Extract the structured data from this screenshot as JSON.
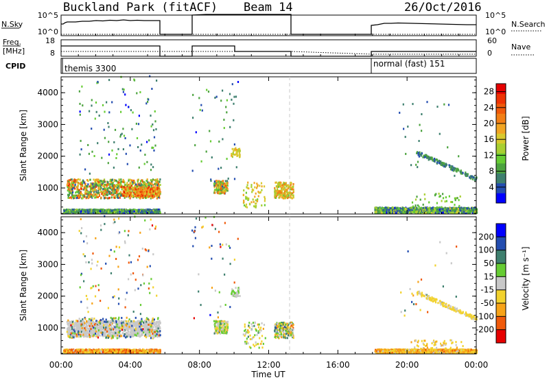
{
  "header": {
    "station": "Buckland Park (fitACF)",
    "beam": "Beam 14",
    "date": "26/Oct/2016"
  },
  "panels": {
    "nsky_label": "N.Sky",
    "nsky_ticks": [
      "10^5",
      "10^0"
    ],
    "nsearch_label": "N.Search",
    "nsearch_ticks": [
      "10^5",
      "10^0"
    ],
    "freq_label_1": "Freq.",
    "freq_label_2": "[MHz]",
    "freq_ticks": [
      "18",
      "8"
    ],
    "nave_label": "Nave",
    "nave_ticks": [
      "60",
      "0"
    ],
    "cpid_label": "CPID",
    "cpid_entries": [
      {
        "text": "themis 3300",
        "start_hour": 0
      },
      {
        "text": "normal (fast) 151",
        "start_hour": 18.1
      }
    ]
  },
  "xaxis": {
    "label": "Time UT",
    "ticks": [
      "00:00",
      "04:00",
      "08:00",
      "12:00",
      "16:00",
      "20:00",
      "00:00"
    ],
    "range_hours": [
      0,
      24
    ]
  },
  "colors": {
    "power": [
      "#0000ff",
      "#234db0",
      "#3e7f6e",
      "#4ca33f",
      "#66cc33",
      "#a8cf32",
      "#d9c92e",
      "#f1a523",
      "#f27f16",
      "#f05a0b",
      "#ee3304",
      "#e60000"
    ],
    "velocity": [
      "#e60000",
      "#f05a0b",
      "#f7a318",
      "#f2d22e",
      "#c8c8c8",
      "#66cc33",
      "#3e7f6e",
      "#234db0",
      "#0000ff"
    ]
  },
  "chart_data": [
    {
      "type": "scatter",
      "title": "",
      "xlabel": "Time UT",
      "ylabel": "Slant Range [km]",
      "ylim": [
        180,
        4500
      ],
      "y_ticks": [
        "1000",
        "2000",
        "3000",
        "4000"
      ],
      "colorbar": {
        "label": "Power [dB]",
        "ticks": [
          "4",
          "8",
          "12",
          "16",
          "20",
          "24",
          "28"
        ],
        "range": [
          0,
          30
        ]
      },
      "scatter_groups": [
        {
          "t0": 0.1,
          "t1": 5.7,
          "r0": 180,
          "r1": 300,
          "n": 900,
          "v0": 2,
          "v1": 14
        },
        {
          "t0": 0.3,
          "t1": 5.7,
          "r0": 650,
          "r1": 1250,
          "n": 900,
          "v0": 4,
          "v1": 26
        },
        {
          "t0": 3.5,
          "t1": 5.7,
          "r0": 700,
          "r1": 1000,
          "n": 300,
          "v0": 14,
          "v1": 28
        },
        {
          "t0": 1.0,
          "t1": 5.5,
          "r0": 1400,
          "r1": 4500,
          "n": 110,
          "v0": 2,
          "v1": 12
        },
        {
          "t0": 8.8,
          "t1": 9.6,
          "r0": 800,
          "r1": 1200,
          "n": 160,
          "v0": 4,
          "v1": 24
        },
        {
          "t0": 7.5,
          "t1": 10.2,
          "r0": 1200,
          "r1": 4500,
          "n": 45,
          "v0": 2,
          "v1": 12
        },
        {
          "t0": 9.8,
          "t1": 10.3,
          "r0": 1950,
          "r1": 2250,
          "n": 40,
          "v0": 14,
          "v1": 18
        },
        {
          "t0": 10.5,
          "t1": 11.8,
          "r0": 350,
          "r1": 1150,
          "n": 70,
          "v0": 12,
          "v1": 20
        },
        {
          "t0": 12.3,
          "t1": 13.4,
          "r0": 650,
          "r1": 1150,
          "n": 200,
          "v0": 12,
          "v1": 22
        },
        {
          "t0": 18.1,
          "t1": 24.0,
          "r0": 180,
          "r1": 360,
          "n": 1100,
          "v0": 2,
          "v1": 16
        },
        {
          "t0": 20.2,
          "t1": 23.2,
          "r0": 350,
          "r1": 800,
          "n": 40,
          "v0": 8,
          "v1": 14
        },
        {
          "t0": 19.5,
          "t1": 23.0,
          "r0": 1300,
          "r1": 3700,
          "n": 25,
          "v0": 2,
          "v1": 10
        }
      ],
      "trends": [
        {
          "t0": 20.5,
          "t1": 24.0,
          "r0": 2100,
          "r1": 1250,
          "n": 160,
          "v0": 4,
          "v1": 10
        }
      ]
    },
    {
      "type": "scatter",
      "title": "",
      "xlabel": "Time UT",
      "ylabel": "Slant Range [km]",
      "ylim": [
        180,
        4500
      ],
      "y_ticks": [
        "1000",
        "2000",
        "3000",
        "4000"
      ],
      "colorbar": {
        "label": "Velocity [m s⁻¹]",
        "ticks": [
          "-200",
          "-100",
          "-50",
          "-15",
          "15",
          "50",
          "100",
          "200"
        ],
        "range": [
          -250,
          250
        ]
      },
      "scatter_groups": [
        {
          "t0": 0.1,
          "t1": 5.7,
          "r0": 180,
          "r1": 300,
          "n": 900,
          "v0": -200,
          "v1": -15
        },
        {
          "t0": 0.3,
          "t1": 5.7,
          "r0": 700,
          "r1": 1200,
          "n": 1100,
          "v0": -14,
          "v1": 14
        },
        {
          "t0": 0.3,
          "t1": 5.7,
          "r0": 650,
          "r1": 1300,
          "n": 250,
          "v0": -200,
          "v1": 200
        },
        {
          "t0": 1.0,
          "t1": 5.5,
          "r0": 1400,
          "r1": 4500,
          "n": 110,
          "v0": -200,
          "v1": 200
        },
        {
          "t0": 8.8,
          "t1": 9.6,
          "r0": 800,
          "r1": 1200,
          "n": 160,
          "v0": -100,
          "v1": 100
        },
        {
          "t0": 7.5,
          "t1": 10.2,
          "r0": 1200,
          "r1": 4500,
          "n": 45,
          "v0": -200,
          "v1": 200
        },
        {
          "t0": 9.8,
          "t1": 10.3,
          "r0": 1950,
          "r1": 2250,
          "n": 40,
          "v0": -14,
          "v1": 60
        },
        {
          "t0": 10.5,
          "t1": 11.8,
          "r0": 350,
          "r1": 1150,
          "n": 70,
          "v0": -100,
          "v1": 100
        },
        {
          "t0": 12.3,
          "t1": 13.4,
          "r0": 650,
          "r1": 1150,
          "n": 200,
          "v0": -150,
          "v1": 150
        },
        {
          "t0": 18.1,
          "t1": 24.0,
          "r0": 180,
          "r1": 300,
          "n": 1200,
          "v0": -150,
          "v1": -15
        },
        {
          "t0": 20.2,
          "t1": 23.2,
          "r0": 300,
          "r1": 600,
          "n": 60,
          "v0": -100,
          "v1": -15
        },
        {
          "t0": 19.5,
          "t1": 23.0,
          "r0": 1300,
          "r1": 3700,
          "n": 25,
          "v0": -200,
          "v1": 200
        }
      ],
      "trends": [
        {
          "t0": 20.5,
          "t1": 24.0,
          "r0": 2100,
          "r1": 1250,
          "n": 160,
          "v0": -60,
          "v1": -15
        }
      ]
    }
  ]
}
